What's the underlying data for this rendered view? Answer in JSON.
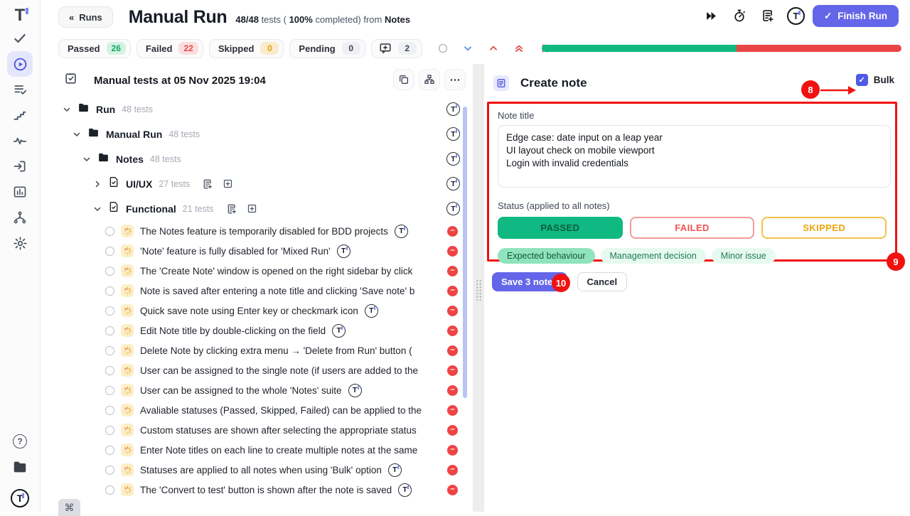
{
  "app": {
    "logo_letter": "T"
  },
  "sidebar": {
    "icons": [
      "check-icon",
      "play-circle-icon",
      "list-check-icon",
      "steps-icon",
      "pulse-icon",
      "import-icon",
      "bar-chart-icon",
      "branch-icon",
      "gear-icon"
    ],
    "active_icon": "play-circle-icon",
    "bottom_icons": [
      "help-icon",
      "projects-folder-icon",
      "logo-circle-icon"
    ],
    "help_glyph": "?"
  },
  "header": {
    "back_button": "Runs",
    "back_chevrons": "«",
    "title": "Manual Run",
    "stats_bold1": "48/48",
    "stats_mid1": " tests ( ",
    "stats_bold2": "100%",
    "stats_mid2": " completed) from ",
    "stats_bold3": "Notes",
    "finish_button": "Finish Run",
    "finish_check": "✓",
    "right_icons": [
      "fast-forward-icon",
      "timer-icon",
      "note-add-icon",
      "logo-circle-icon"
    ]
  },
  "filters": [
    {
      "label": "Passed",
      "count": "26",
      "cls": "green"
    },
    {
      "label": "Failed",
      "count": "22",
      "cls": "red"
    },
    {
      "label": "Skipped",
      "count": "0",
      "cls": "amber"
    },
    {
      "label": "Pending",
      "count": "0",
      "cls": "gray"
    }
  ],
  "comment_filter": {
    "count": "2"
  },
  "progress": {
    "passed_width": "54.2%",
    "failed_width": "45.8%"
  },
  "run_tree": {
    "toolbar_title": "Manual tests at 05 Nov 2025 19:04",
    "toolbar_icons": [
      "clipboard-check-icon",
      "copy-icon",
      "hierarchy-icon",
      "more-icon"
    ],
    "more_glyph": "⋯",
    "nodes": [
      {
        "label": "Run",
        "count": "48 tests",
        "level": "lvl0",
        "chevron": "down",
        "is_folder": true
      },
      {
        "label": "Manual Run",
        "count": "48 tests",
        "level": "lvl1",
        "chevron": "down",
        "is_folder": true
      },
      {
        "label": "Notes",
        "count": "48 tests",
        "level": "lvl2",
        "chevron": "down",
        "is_folder": true
      },
      {
        "label": "UI/UX",
        "count": "27 tests",
        "level": "lvl3",
        "chevron": "right",
        "is_file": true,
        "extras": true
      },
      {
        "label": "Functional",
        "count": "21 tests",
        "level": "lvl3",
        "chevron": "down",
        "is_file": true,
        "extras": true
      }
    ],
    "tests": [
      {
        "title": "The Notes feature is temporarily disabled for BDD projects",
        "logo": true
      },
      {
        "title": "'Note' feature is fully disabled for 'Mixed Run'",
        "logo": true
      },
      {
        "title": "The 'Create Note' window is opened on the right sidebar by click",
        "logo": false
      },
      {
        "title": "Note is saved after entering a note title and clicking 'Save note' b",
        "logo": false
      },
      {
        "title": "Quick save note using Enter key or checkmark icon",
        "logo": true
      },
      {
        "title": "Edit Note title by double-clicking on the field",
        "logo": true
      },
      {
        "title": "Delete Note by clicking extra menu → 'Delete from Run' button (",
        "logo": false
      },
      {
        "title": "User can be assigned to the single note (if users are added to the",
        "logo": false
      },
      {
        "title": "User can be assigned to the whole 'Notes' suite",
        "logo": true
      },
      {
        "title": "Avaliable statuses (Passed, Skipped, Failed) can be applied to the",
        "logo": false
      },
      {
        "title": "Custom statuses are shown after selecting the appropriate status",
        "logo": false
      },
      {
        "title": "Enter Note titles on each line to create multiple notes at the same",
        "logo": false
      },
      {
        "title": "Statuses are applied to all notes when using 'Bulk' option",
        "logo": true
      },
      {
        "title": "The 'Convert to test' button is shown after the note is saved",
        "logo": true
      }
    ]
  },
  "note_panel": {
    "title": "Create note",
    "bulk_label": "Bulk",
    "bulk_check": "✓",
    "field_label": "Note title",
    "note_text": "Edge case: date input on a leap year\nUI layout check on mobile viewport\nLogin with invalid credentials",
    "status_label": "Status (applied to all notes)",
    "statuses": [
      {
        "label": "PASSED",
        "kind": "passed"
      },
      {
        "label": "FAILED",
        "kind": "failed"
      },
      {
        "label": "SKIPPED",
        "kind": "skipped"
      }
    ],
    "tags": [
      {
        "label": "Expected behaviour",
        "cls": "selected"
      },
      {
        "label": "Management decision"
      },
      {
        "label": "Minor issue"
      }
    ],
    "save_button": "Save 3 notes",
    "cancel_button": "Cancel"
  },
  "annotations": {
    "n8": "8",
    "n9": "9",
    "n10": "10"
  },
  "footer": {
    "shortcut_key": "⌘"
  },
  "colors": {
    "accent_indigo": "#6466e9",
    "passed_green": "#10b981",
    "failed_red": "#ea4545",
    "skipped_amber": "#f0a30c",
    "annotation_red": "#f01111"
  }
}
